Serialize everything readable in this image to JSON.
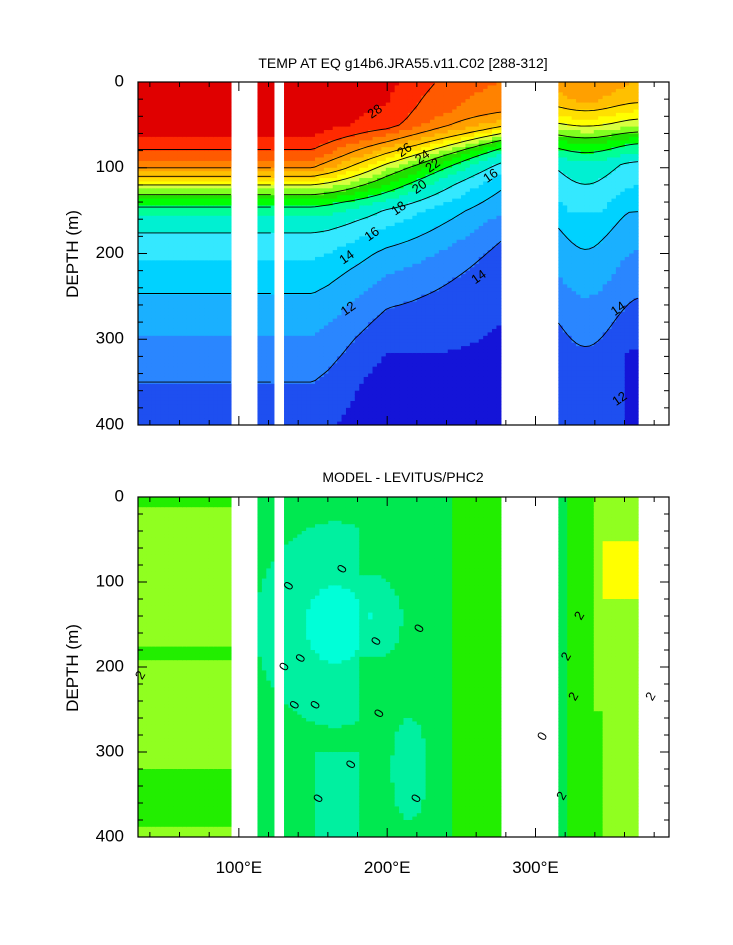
{
  "chart_data": [
    {
      "type": "heatmap",
      "title": "TEMP AT EQ g14b6.JRA55.v11.C02 [288-312]",
      "ylabel": "DEPTH (m)",
      "xlabel": "",
      "xlim": [
        32,
        390
      ],
      "ylim": [
        400,
        0
      ],
      "x_ticks": [
        {
          "value": 100,
          "label": "100°E"
        },
        {
          "value": 200,
          "label": "200°E"
        },
        {
          "value": 300,
          "label": "300°E"
        }
      ],
      "y_ticks": [
        {
          "value": 0,
          "label": "0"
        },
        {
          "value": 100,
          "label": "100"
        },
        {
          "value": 200,
          "label": "200"
        },
        {
          "value": 300,
          "label": "300"
        },
        {
          "value": 400,
          "label": "400"
        }
      ],
      "x_tick_labels_shown": false,
      "grid": false,
      "land_gaps_x": [
        [
          96,
          112
        ],
        [
          124,
          130
        ],
        [
          278,
          315
        ],
        [
          370,
          390
        ]
      ],
      "palette": [
        "#1414d8",
        "#1e4ff0",
        "#2a86ff",
        "#1ab0ff",
        "#00d2ff",
        "#34e8ff",
        "#00f0d2",
        "#00ff96",
        "#00ff00",
        "#20e000",
        "#80ff20",
        "#d8ff40",
        "#ffff00",
        "#ffe000",
        "#ffc000",
        "#ffa000",
        "#ff8200",
        "#ff5a00",
        "#ff2a00",
        "#e00000"
      ],
      "profiles": {
        "west": [
          [
            0,
            29.6
          ],
          [
            60,
            29.2
          ],
          [
            85,
            27.6
          ],
          [
            100,
            26.0
          ],
          [
            120,
            22.0
          ],
          [
            140,
            18.5
          ],
          [
            160,
            16.8
          ],
          [
            180,
            15.8
          ],
          [
            220,
            14.6
          ],
          [
            260,
            13.7
          ],
          [
            300,
            12.9
          ],
          [
            350,
            12.0
          ],
          [
            400,
            11.5
          ]
        ],
        "central": [
          [
            0,
            29.8
          ],
          [
            50,
            29.0
          ],
          [
            100,
            22.0
          ],
          [
            150,
            16.5
          ],
          [
            200,
            14.2
          ],
          [
            250,
            12.8
          ],
          [
            300,
            11.6
          ],
          [
            350,
            10.8
          ],
          [
            400,
            10.2
          ]
        ],
        "east": [
          [
            0,
            25.5
          ],
          [
            30,
            24.5
          ],
          [
            60,
            22.0
          ],
          [
            90,
            18.5
          ],
          [
            120,
            16.2
          ],
          [
            170,
            15.0
          ],
          [
            230,
            14.0
          ],
          [
            300,
            13.0
          ],
          [
            400,
            11.6
          ]
        ]
      },
      "contour_labels": [
        {
          "text": "28",
          "x": 192,
          "depth": 35
        },
        {
          "text": "26",
          "x": 212,
          "depth": 80
        },
        {
          "text": "24",
          "x": 224,
          "depth": 88
        },
        {
          "text": "22",
          "x": 231,
          "depth": 98
        },
        {
          "text": "20",
          "x": 222,
          "depth": 123
        },
        {
          "text": "18",
          "x": 208,
          "depth": 148
        },
        {
          "text": "16",
          "x": 190,
          "depth": 178
        },
        {
          "text": "14",
          "x": 173,
          "depth": 205
        },
        {
          "text": "12",
          "x": 174,
          "depth": 265
        },
        {
          "text": "16",
          "x": 270,
          "depth": 110
        },
        {
          "text": "14",
          "x": 262,
          "depth": 228
        },
        {
          "text": "14",
          "x": 356,
          "depth": 265
        },
        {
          "text": "12",
          "x": 357,
          "depth": 370
        }
      ]
    },
    {
      "type": "heatmap",
      "title": "MODEL - LEVITUS/PHC2",
      "ylabel": "DEPTH (m)",
      "xlabel": "",
      "xlim": [
        32,
        390
      ],
      "ylim": [
        400,
        0
      ],
      "x_ticks": [
        {
          "value": 100,
          "label": "100°E"
        },
        {
          "value": 200,
          "label": "200°E"
        },
        {
          "value": 300,
          "label": "300°E"
        }
      ],
      "y_ticks": [
        {
          "value": 0,
          "label": "0"
        },
        {
          "value": 100,
          "label": "100"
        },
        {
          "value": 200,
          "label": "200"
        },
        {
          "value": 300,
          "label": "300"
        },
        {
          "value": 400,
          "label": "400"
        }
      ],
      "x_tick_labels_shown": true,
      "grid": false,
      "land_gaps_x": [
        [
          96,
          112
        ],
        [
          124,
          130
        ],
        [
          278,
          315
        ],
        [
          370,
          390
        ]
      ],
      "palette": {
        "negative_2": "#00ffd8",
        "negative_1": "#00f0a0",
        "zero": "#00e850",
        "positive_1": "#22ee00",
        "positive_2": "#90ff20",
        "positive_3": "#ffff00"
      },
      "contour_labels": [
        {
          "text": "2",
          "x": 34,
          "depth": 210
        },
        {
          "text": "0",
          "x": 134,
          "depth": 105
        },
        {
          "text": "0",
          "x": 131,
          "depth": 200
        },
        {
          "text": "0",
          "x": 142,
          "depth": 190
        },
        {
          "text": "0",
          "x": 138,
          "depth": 245
        },
        {
          "text": "0",
          "x": 152,
          "depth": 245
        },
        {
          "text": "0",
          "x": 170,
          "depth": 85
        },
        {
          "text": "0",
          "x": 193,
          "depth": 170
        },
        {
          "text": "0",
          "x": 222,
          "depth": 155
        },
        {
          "text": "0",
          "x": 195,
          "depth": 255
        },
        {
          "text": "0",
          "x": 176,
          "depth": 315
        },
        {
          "text": "0",
          "x": 154,
          "depth": 355
        },
        {
          "text": "0",
          "x": 220,
          "depth": 355
        },
        {
          "text": "2",
          "x": 330,
          "depth": 140
        },
        {
          "text": "2",
          "x": 321,
          "depth": 188
        },
        {
          "text": "2",
          "x": 326,
          "depth": 235
        },
        {
          "text": "2",
          "x": 378,
          "depth": 235
        },
        {
          "text": "0",
          "x": 305,
          "depth": 282
        },
        {
          "text": "2",
          "x": 318,
          "depth": 352
        }
      ]
    }
  ]
}
